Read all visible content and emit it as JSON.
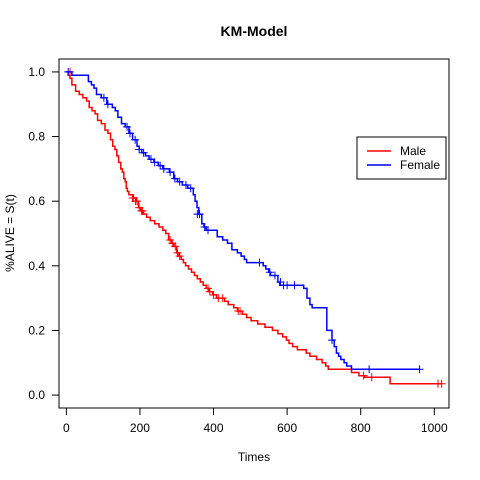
{
  "chart_data": {
    "type": "line",
    "title": "KM-Model",
    "xlabel": "Times",
    "ylabel": "%ALIVE = S(t)",
    "xlim": [
      -20,
      1040
    ],
    "ylim": [
      -0.04,
      1.04
    ],
    "xticks": [
      0,
      200,
      400,
      600,
      800,
      1000
    ],
    "yticks": [
      0.0,
      0.2,
      0.4,
      0.6,
      0.8,
      1.0
    ],
    "ytick_labels": [
      "0.0",
      "0.2",
      "0.4",
      "0.6",
      "0.8",
      "1.0"
    ],
    "grid": false,
    "legend_position": "right",
    "series": [
      {
        "name": "Male",
        "color": "#ff0000",
        "steps": [
          [
            0,
            1.0
          ],
          [
            5,
            0.99
          ],
          [
            10,
            0.98
          ],
          [
            15,
            0.96
          ],
          [
            25,
            0.94
          ],
          [
            35,
            0.93
          ],
          [
            45,
            0.92
          ],
          [
            55,
            0.91
          ],
          [
            62,
            0.89
          ],
          [
            70,
            0.88
          ],
          [
            78,
            0.87
          ],
          [
            85,
            0.85
          ],
          [
            95,
            0.84
          ],
          [
            105,
            0.82
          ],
          [
            113,
            0.81
          ],
          [
            120,
            0.79
          ],
          [
            126,
            0.77
          ],
          [
            132,
            0.76
          ],
          [
            137,
            0.74
          ],
          [
            142,
            0.72
          ],
          [
            148,
            0.7
          ],
          [
            152,
            0.69
          ],
          [
            156,
            0.67
          ],
          [
            160,
            0.66
          ],
          [
            163,
            0.64
          ],
          [
            166,
            0.63
          ],
          [
            170,
            0.62
          ],
          [
            180,
            0.61
          ],
          [
            190,
            0.6
          ],
          [
            196,
            0.58
          ],
          [
            202,
            0.57
          ],
          [
            210,
            0.56
          ],
          [
            218,
            0.55
          ],
          [
            228,
            0.54
          ],
          [
            240,
            0.53
          ],
          [
            252,
            0.52
          ],
          [
            262,
            0.51
          ],
          [
            270,
            0.5
          ],
          [
            278,
            0.48
          ],
          [
            286,
            0.47
          ],
          [
            292,
            0.46
          ],
          [
            300,
            0.44
          ],
          [
            306,
            0.43
          ],
          [
            312,
            0.42
          ],
          [
            318,
            0.41
          ],
          [
            324,
            0.4
          ],
          [
            332,
            0.39
          ],
          [
            340,
            0.38
          ],
          [
            348,
            0.37
          ],
          [
            356,
            0.36
          ],
          [
            364,
            0.35
          ],
          [
            372,
            0.34
          ],
          [
            380,
            0.33
          ],
          [
            388,
            0.32
          ],
          [
            398,
            0.31
          ],
          [
            408,
            0.3
          ],
          [
            430,
            0.29
          ],
          [
            440,
            0.28
          ],
          [
            455,
            0.27
          ],
          [
            465,
            0.26
          ],
          [
            478,
            0.25
          ],
          [
            490,
            0.24
          ],
          [
            502,
            0.23
          ],
          [
            520,
            0.22
          ],
          [
            540,
            0.21
          ],
          [
            560,
            0.2
          ],
          [
            575,
            0.19
          ],
          [
            588,
            0.18
          ],
          [
            598,
            0.17
          ],
          [
            605,
            0.16
          ],
          [
            615,
            0.15
          ],
          [
            628,
            0.14
          ],
          [
            652,
            0.13
          ],
          [
            662,
            0.12
          ],
          [
            680,
            0.11
          ],
          [
            695,
            0.1
          ],
          [
            705,
            0.09
          ],
          [
            712,
            0.08
          ],
          [
            775,
            0.07
          ],
          [
            795,
            0.06
          ],
          [
            810,
            0.055
          ],
          [
            880,
            0.035
          ],
          [
            1020,
            0.035
          ]
        ],
        "censors": [
          [
            10,
            1.0
          ],
          [
            180,
            0.61
          ],
          [
            183,
            0.61
          ],
          [
            188,
            0.6
          ],
          [
            192,
            0.6
          ],
          [
            198,
            0.58
          ],
          [
            204,
            0.57
          ],
          [
            207,
            0.57
          ],
          [
            282,
            0.48
          ],
          [
            288,
            0.47
          ],
          [
            296,
            0.46
          ],
          [
            302,
            0.44
          ],
          [
            308,
            0.43
          ],
          [
            385,
            0.33
          ],
          [
            390,
            0.32
          ],
          [
            400,
            0.31
          ],
          [
            413,
            0.3
          ],
          [
            425,
            0.3
          ],
          [
            467,
            0.26
          ],
          [
            472,
            0.26
          ],
          [
            808,
            0.06
          ],
          [
            830,
            0.055
          ],
          [
            1010,
            0.035
          ],
          [
            1020,
            0.035
          ]
        ]
      },
      {
        "name": "Female",
        "color": "#0000ff",
        "steps": [
          [
            0,
            1.0
          ],
          [
            15,
            0.99
          ],
          [
            60,
            0.97
          ],
          [
            68,
            0.96
          ],
          [
            75,
            0.95
          ],
          [
            82,
            0.93
          ],
          [
            95,
            0.92
          ],
          [
            110,
            0.9
          ],
          [
            125,
            0.89
          ],
          [
            133,
            0.88
          ],
          [
            140,
            0.86
          ],
          [
            150,
            0.84
          ],
          [
            160,
            0.83
          ],
          [
            170,
            0.81
          ],
          [
            180,
            0.79
          ],
          [
            192,
            0.77
          ],
          [
            198,
            0.76
          ],
          [
            205,
            0.75
          ],
          [
            215,
            0.74
          ],
          [
            225,
            0.73
          ],
          [
            238,
            0.72
          ],
          [
            250,
            0.71
          ],
          [
            262,
            0.7
          ],
          [
            280,
            0.69
          ],
          [
            292,
            0.67
          ],
          [
            302,
            0.66
          ],
          [
            315,
            0.65
          ],
          [
            330,
            0.64
          ],
          [
            345,
            0.62
          ],
          [
            350,
            0.6
          ],
          [
            355,
            0.58
          ],
          [
            360,
            0.56
          ],
          [
            368,
            0.53
          ],
          [
            374,
            0.52
          ],
          [
            380,
            0.51
          ],
          [
            410,
            0.49
          ],
          [
            425,
            0.48
          ],
          [
            438,
            0.47
          ],
          [
            450,
            0.45
          ],
          [
            465,
            0.44
          ],
          [
            475,
            0.43
          ],
          [
            484,
            0.42
          ],
          [
            490,
            0.41
          ],
          [
            535,
            0.4
          ],
          [
            542,
            0.39
          ],
          [
            550,
            0.38
          ],
          [
            555,
            0.37
          ],
          [
            575,
            0.35
          ],
          [
            580,
            0.34
          ],
          [
            645,
            0.33
          ],
          [
            654,
            0.3
          ],
          [
            662,
            0.28
          ],
          [
            668,
            0.27
          ],
          [
            708,
            0.2
          ],
          [
            722,
            0.17
          ],
          [
            728,
            0.15
          ],
          [
            734,
            0.13
          ],
          [
            740,
            0.12
          ],
          [
            746,
            0.11
          ],
          [
            755,
            0.1
          ],
          [
            762,
            0.09
          ],
          [
            775,
            0.08
          ],
          [
            960,
            0.08
          ]
        ],
        "censors": [
          [
            5,
            1.0
          ],
          [
            102,
            0.92
          ],
          [
            113,
            0.9
          ],
          [
            165,
            0.83
          ],
          [
            173,
            0.81
          ],
          [
            187,
            0.79
          ],
          [
            198,
            0.76
          ],
          [
            210,
            0.75
          ],
          [
            230,
            0.73
          ],
          [
            240,
            0.72
          ],
          [
            255,
            0.71
          ],
          [
            265,
            0.7
          ],
          [
            282,
            0.69
          ],
          [
            295,
            0.67
          ],
          [
            308,
            0.66
          ],
          [
            325,
            0.65
          ],
          [
            338,
            0.64
          ],
          [
            356,
            0.56
          ],
          [
            362,
            0.56
          ],
          [
            376,
            0.52
          ],
          [
            385,
            0.51
          ],
          [
            525,
            0.41
          ],
          [
            553,
            0.38
          ],
          [
            567,
            0.37
          ],
          [
            582,
            0.35
          ],
          [
            590,
            0.34
          ],
          [
            600,
            0.34
          ],
          [
            620,
            0.34
          ],
          [
            722,
            0.17
          ],
          [
            823,
            0.08
          ],
          [
            960,
            0.08
          ]
        ]
      }
    ]
  }
}
